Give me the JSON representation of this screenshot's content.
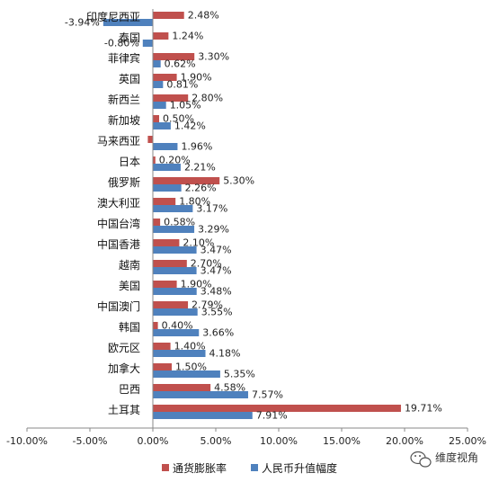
{
  "chart_data": {
    "type": "bar",
    "orientation": "horizontal",
    "categories": [
      "印度尼西亚",
      "泰国",
      "菲律宾",
      "英国",
      "新西兰",
      "新加坡",
      "马来西亚",
      "日本",
      "俄罗斯",
      "澳大利亚",
      "中国台湾",
      "中国香港",
      "越南",
      "美国",
      "中国澳门",
      "韩国",
      "欧元区",
      "加拿大",
      "巴西",
      "土耳其"
    ],
    "series": [
      {
        "name": "通货膨胀率",
        "color": "#c0504d",
        "values": [
          2.48,
          1.24,
          3.3,
          1.9,
          2.8,
          0.5,
          -0.4,
          0.2,
          5.3,
          1.8,
          0.58,
          2.1,
          2.7,
          1.9,
          2.79,
          0.4,
          1.4,
          1.5,
          4.58,
          19.71
        ],
        "labels": [
          "2.48%",
          "1.24%",
          "3.30%",
          "1.90%",
          "2.80%",
          "0.50%",
          "",
          "0.20%",
          "5.30%",
          "1.80%",
          "0.58%",
          "2.10%",
          "2.70%",
          "1.90%",
          "2.79%",
          "0.40%",
          "1.40%",
          "1.50%",
          "4.58%",
          "19.71%"
        ]
      },
      {
        "name": "人民币升值幅度",
        "color": "#4f81bd",
        "values": [
          -3.94,
          -0.8,
          0.62,
          0.81,
          1.05,
          1.42,
          1.96,
          2.21,
          2.26,
          3.17,
          3.29,
          3.47,
          3.47,
          3.48,
          3.55,
          3.66,
          4.18,
          5.35,
          7.57,
          7.91
        ],
        "labels": [
          "-3.94%",
          "-0.80%",
          "0.62%",
          "0.81%",
          "1.05%",
          "1.42%",
          "1.96%",
          "2.21%",
          "2.26%",
          "3.17%",
          "3.29%",
          "3.47%",
          "3.47%",
          "3.48%",
          "3.55%",
          "3.66%",
          "4.18%",
          "5.35%",
          "7.57%",
          "7.91%"
        ]
      }
    ],
    "xlim": [
      -10,
      25
    ],
    "x_ticks": [
      -10,
      -5,
      0,
      5,
      10,
      15,
      20,
      25
    ],
    "x_tick_labels": [
      "-10.00%",
      "-5.00%",
      "0.00%",
      "5.00%",
      "10.00%",
      "15.00%",
      "20.00%",
      "25.00%"
    ],
    "legend_position": "bottom",
    "grid": false
  },
  "watermark": {
    "brand_text": "维度视角",
    "icon": "wechat-icon"
  }
}
